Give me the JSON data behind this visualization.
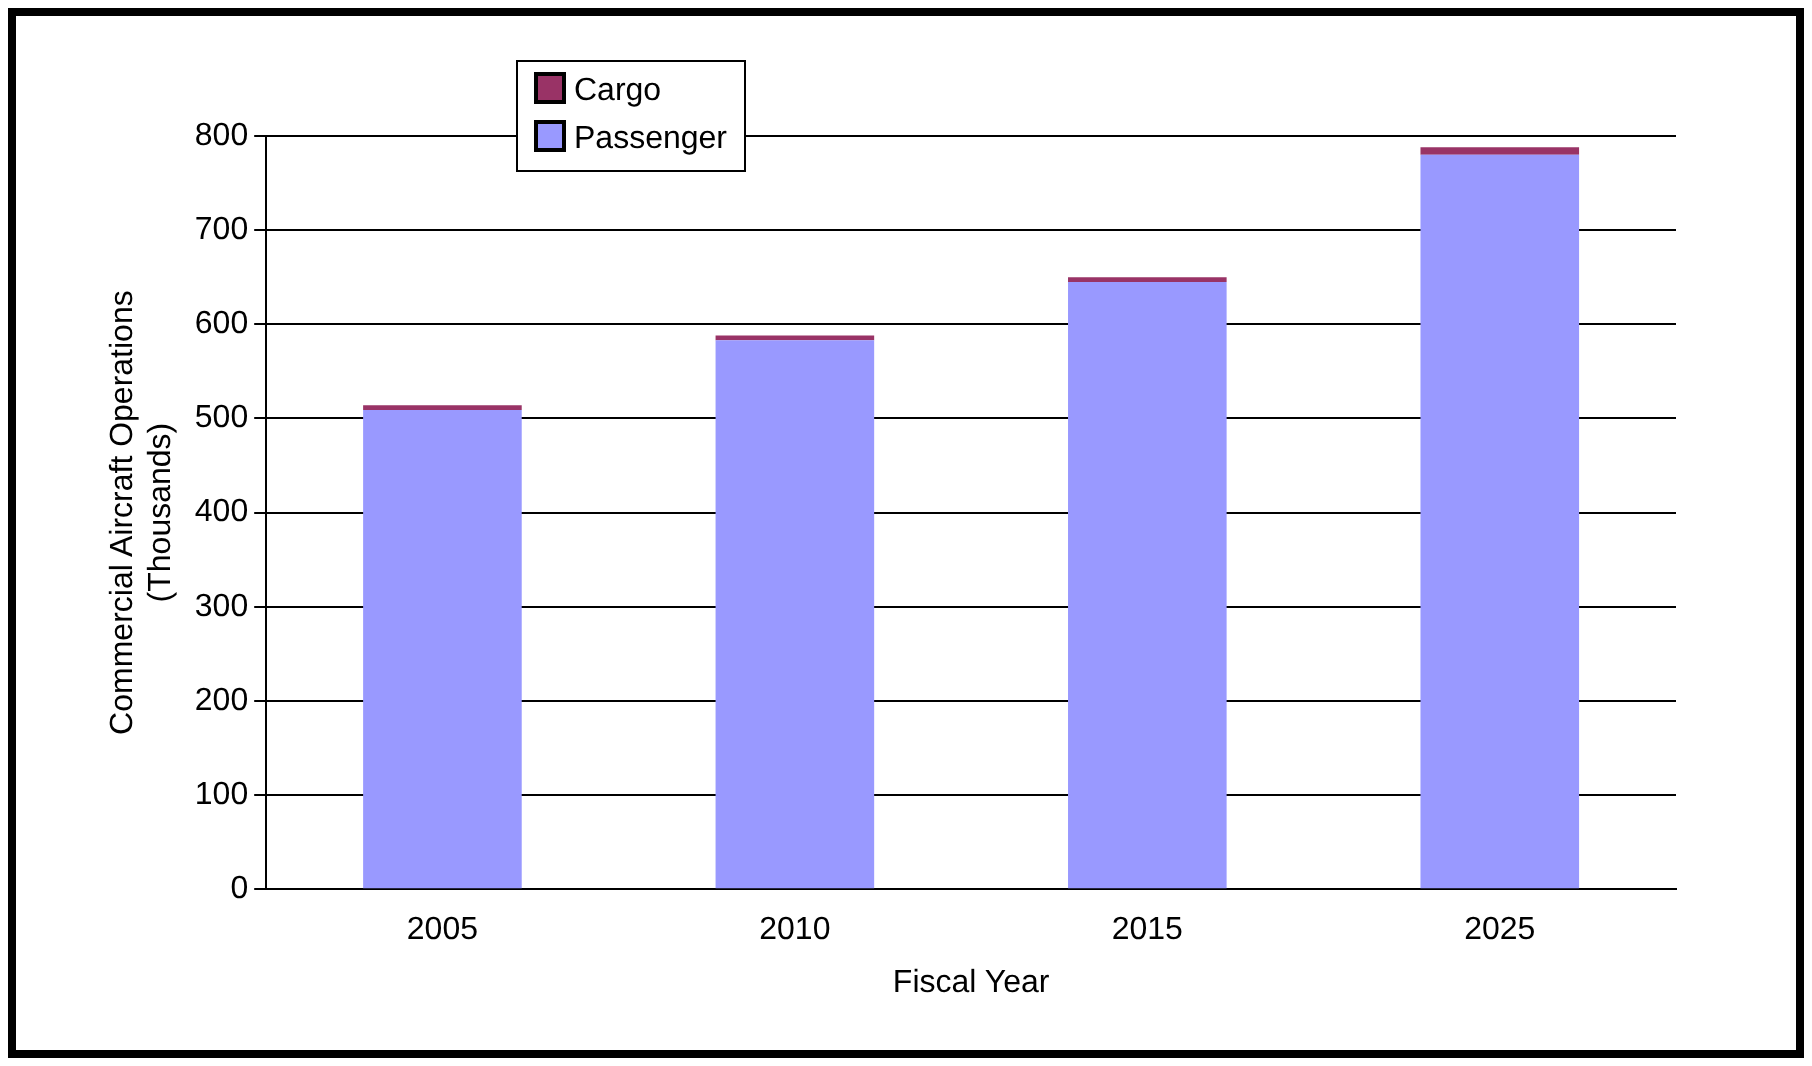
{
  "chart_data": {
    "type": "bar",
    "xlabel": "Fiscal Year",
    "ylabel": "Commercial Aircraft Operations\n(Thousands)",
    "categories": [
      "2005",
      "2010",
      "2015",
      "2025"
    ],
    "series": [
      {
        "name": "Passenger",
        "color": "#9999ff",
        "values": [
          509,
          583,
          645,
          780
        ]
      },
      {
        "name": "Cargo",
        "color": "#993366",
        "values": [
          5,
          5,
          5,
          8
        ]
      }
    ],
    "stacked": true,
    "ylim": [
      0,
      800
    ],
    "yticks": [
      0,
      100,
      200,
      300,
      400,
      500,
      600,
      700,
      800
    ],
    "grid": "y",
    "legend": "top left"
  }
}
